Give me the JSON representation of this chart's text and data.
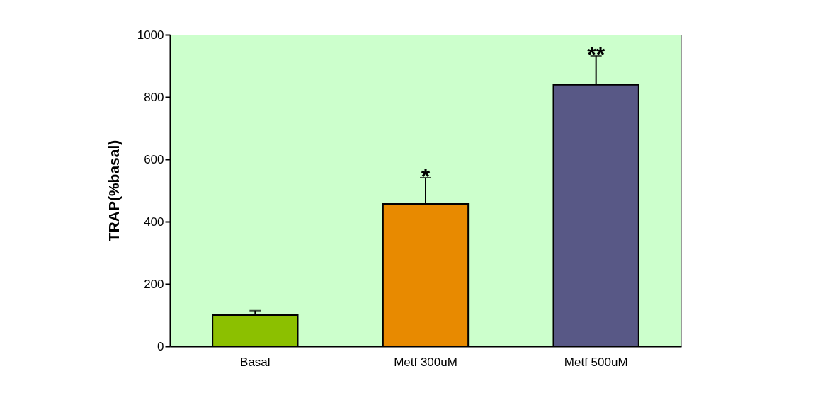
{
  "chart_data": {
    "type": "bar",
    "ylabel": "TRAP(%basal)",
    "categories": [
      "Basal",
      "Metf 300uM",
      "Metf 500uM"
    ],
    "values": [
      100,
      457,
      839
    ],
    "colors": [
      "#8cc000",
      "#e88a00",
      "#585886"
    ],
    "errors": [
      [
        100,
        114
      ],
      [
        457,
        541
      ],
      [
        839,
        932
      ]
    ],
    "ylim": [
      0,
      1000
    ],
    "yticks": [
      0,
      200,
      400,
      600,
      800,
      1000
    ],
    "grid": false,
    "annotations": [
      {
        "text": "*",
        "x": "Metf 300uM",
        "y": 541
      },
      {
        "text": "**",
        "x": "Metf 500uM",
        "y": 932
      }
    ]
  }
}
